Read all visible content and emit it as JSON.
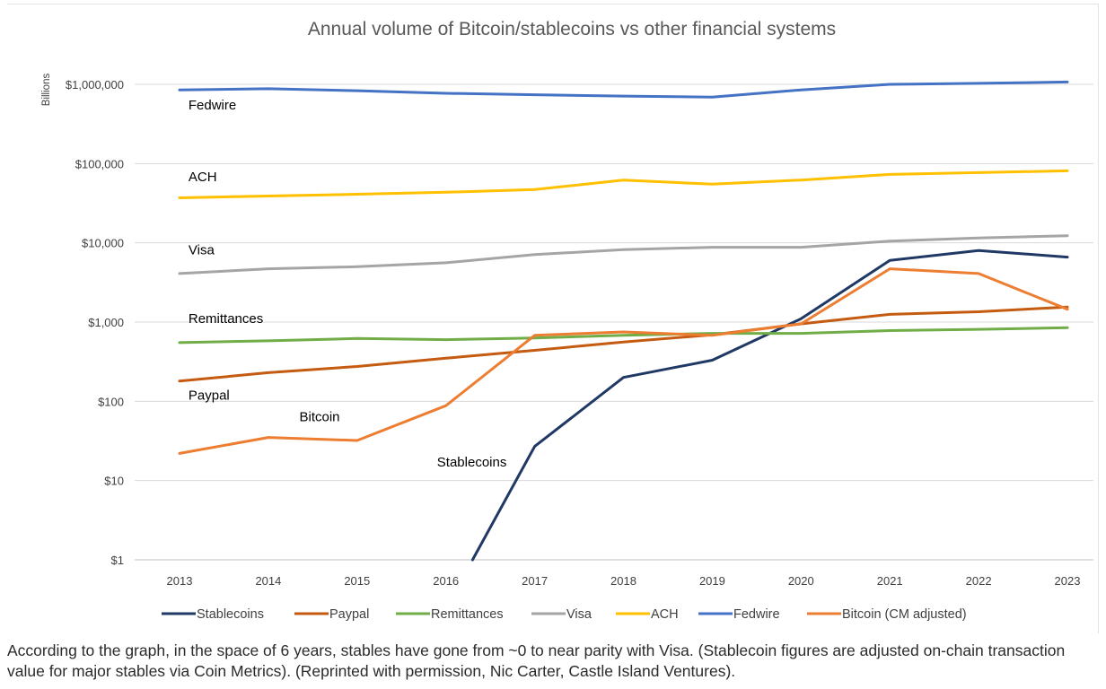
{
  "caption": "According to the graph, in the space of 6 years, stables have gone from ~0 to near parity with Visa. (Stablecoin figures are adjusted on-chain transaction value for major stables via Coin Metrics). (Reprinted with permission, Nic Carter, Castle Island Ventures).",
  "chart_data": {
    "type": "line",
    "title": "Annual volume of Bitcoin/stablecoins vs other financial systems",
    "xlabel": "",
    "ylabel": "Billions",
    "yscale": "log",
    "ylim": [
      1,
      1000000
    ],
    "grid": true,
    "legend_position": "bottom",
    "x": [
      2013,
      2014,
      2015,
      2016,
      2017,
      2018,
      2019,
      2020,
      2021,
      2022,
      2023
    ],
    "x_tick_labels": [
      "2013",
      "2014",
      "2015",
      "2016",
      "2017",
      "2018",
      "2019",
      "2020",
      "2021",
      "2022",
      "2023"
    ],
    "y_ticks": [
      1,
      10,
      100,
      1000,
      10000,
      100000,
      1000000
    ],
    "y_tick_labels": [
      "$1",
      "$10",
      "$100",
      "$1,000",
      "$10,000",
      "$100,000",
      "$1,000,000"
    ],
    "series": [
      {
        "name": "Stablecoins",
        "color": "#203864",
        "points": [
          [
            2016.3,
            1
          ],
          [
            2017,
            27
          ],
          [
            2018,
            200
          ],
          [
            2019,
            330
          ],
          [
            2020,
            1100
          ],
          [
            2021,
            6000
          ],
          [
            2022,
            8000
          ],
          [
            2023,
            6600
          ]
        ]
      },
      {
        "name": "Paypal",
        "color": "#c55a11",
        "points": [
          [
            2013,
            180
          ],
          [
            2014,
            230
          ],
          [
            2015,
            275
          ],
          [
            2016,
            350
          ],
          [
            2017,
            440
          ],
          [
            2018,
            560
          ],
          [
            2019,
            690
          ],
          [
            2020,
            950
          ],
          [
            2021,
            1250
          ],
          [
            2022,
            1350
          ],
          [
            2023,
            1550
          ]
        ]
      },
      {
        "name": "Remittances",
        "color": "#70ad47",
        "points": [
          [
            2013,
            550
          ],
          [
            2014,
            580
          ],
          [
            2015,
            620
          ],
          [
            2016,
            600
          ],
          [
            2017,
            630
          ],
          [
            2018,
            680
          ],
          [
            2019,
            720
          ],
          [
            2020,
            720
          ],
          [
            2021,
            780
          ],
          [
            2022,
            810
          ],
          [
            2023,
            850
          ]
        ]
      },
      {
        "name": "Visa",
        "color": "#a5a5a5",
        "points": [
          [
            2013,
            4100
          ],
          [
            2014,
            4700
          ],
          [
            2015,
            5000
          ],
          [
            2016,
            5600
          ],
          [
            2017,
            7100
          ],
          [
            2018,
            8200
          ],
          [
            2019,
            8800
          ],
          [
            2020,
            8800
          ],
          [
            2021,
            10500
          ],
          [
            2022,
            11500
          ],
          [
            2023,
            12300
          ]
        ]
      },
      {
        "name": "ACH",
        "color": "#ffc000",
        "points": [
          [
            2013,
            37000
          ],
          [
            2014,
            39000
          ],
          [
            2015,
            41000
          ],
          [
            2016,
            43500
          ],
          [
            2017,
            47000
          ],
          [
            2018,
            62000
          ],
          [
            2019,
            55000
          ],
          [
            2020,
            62000
          ],
          [
            2021,
            73000
          ],
          [
            2022,
            77000
          ],
          [
            2023,
            81000
          ]
        ]
      },
      {
        "name": "Fedwire",
        "color": "#4472c4",
        "points": [
          [
            2013,
            850000
          ],
          [
            2014,
            880000
          ],
          [
            2015,
            830000
          ],
          [
            2016,
            770000
          ],
          [
            2017,
            740000
          ],
          [
            2018,
            710000
          ],
          [
            2019,
            690000
          ],
          [
            2020,
            850000
          ],
          [
            2021,
            1000000
          ],
          [
            2022,
            1030000
          ],
          [
            2023,
            1070000
          ]
        ]
      },
      {
        "name": "Bitcoin (CM adjusted)",
        "color": "#ed7d31",
        "points": [
          [
            2013,
            22
          ],
          [
            2014,
            35
          ],
          [
            2015,
            32
          ],
          [
            2016,
            88
          ],
          [
            2017,
            680
          ],
          [
            2018,
            750
          ],
          [
            2019,
            680
          ],
          [
            2020,
            950
          ],
          [
            2021,
            4700
          ],
          [
            2022,
            4100
          ],
          [
            2023,
            1450
          ]
        ]
      }
    ],
    "annotations": [
      {
        "text": "Fedwire",
        "x": 2013.1,
        "y": 480000
      },
      {
        "text": "ACH",
        "x": 2013.1,
        "y": 60000
      },
      {
        "text": "Visa",
        "x": 2013.1,
        "y": 7200
      },
      {
        "text": "Remittances",
        "x": 2013.1,
        "y": 970
      },
      {
        "text": "Paypal",
        "x": 2013.1,
        "y": 105
      },
      {
        "text": "Bitcoin",
        "x": 2014.35,
        "y": 56
      },
      {
        "text": "Stablecoins",
        "x": 2015.9,
        "y": 15
      }
    ]
  }
}
